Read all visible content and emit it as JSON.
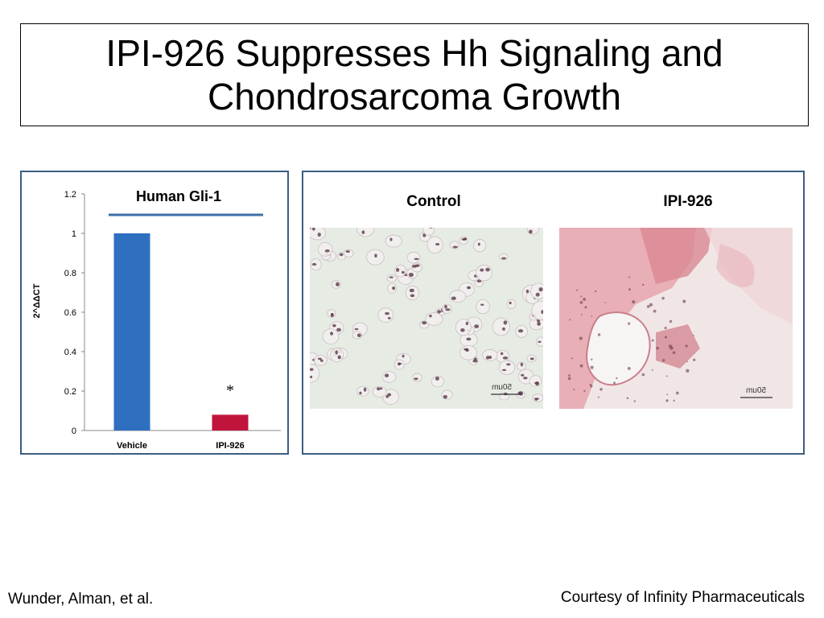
{
  "slide": {
    "title": "IPI-926 Suppresses Hh Signaling and Chondrosarcoma Growth",
    "footer_left": "Wunder, Alman, et al.",
    "footer_right": "Courtesy of Infinity Pharmaceuticals"
  },
  "micrographs": {
    "control_label": "Control",
    "treated_label": "IPI-926",
    "scale_bar_text": "50um"
  },
  "chart_data": {
    "type": "bar",
    "title": "Human Gli-1",
    "ylabel": "2^ΔΔCT",
    "xlabel": "",
    "categories": [
      "Vehicle",
      "IPI-926"
    ],
    "values": [
      1.0,
      0.08
    ],
    "bar_colors": [
      "#2e6fbf",
      "#c0143c"
    ],
    "ylim": [
      0,
      1.2
    ],
    "yticks": [
      0,
      0.2,
      0.4,
      0.6,
      0.8,
      1,
      1.2
    ],
    "significance_marker": "*",
    "grid": false,
    "legend": "none"
  },
  "colors": {
    "panel_border": "#3c5d82",
    "title_underline": "#3c6fa8"
  }
}
